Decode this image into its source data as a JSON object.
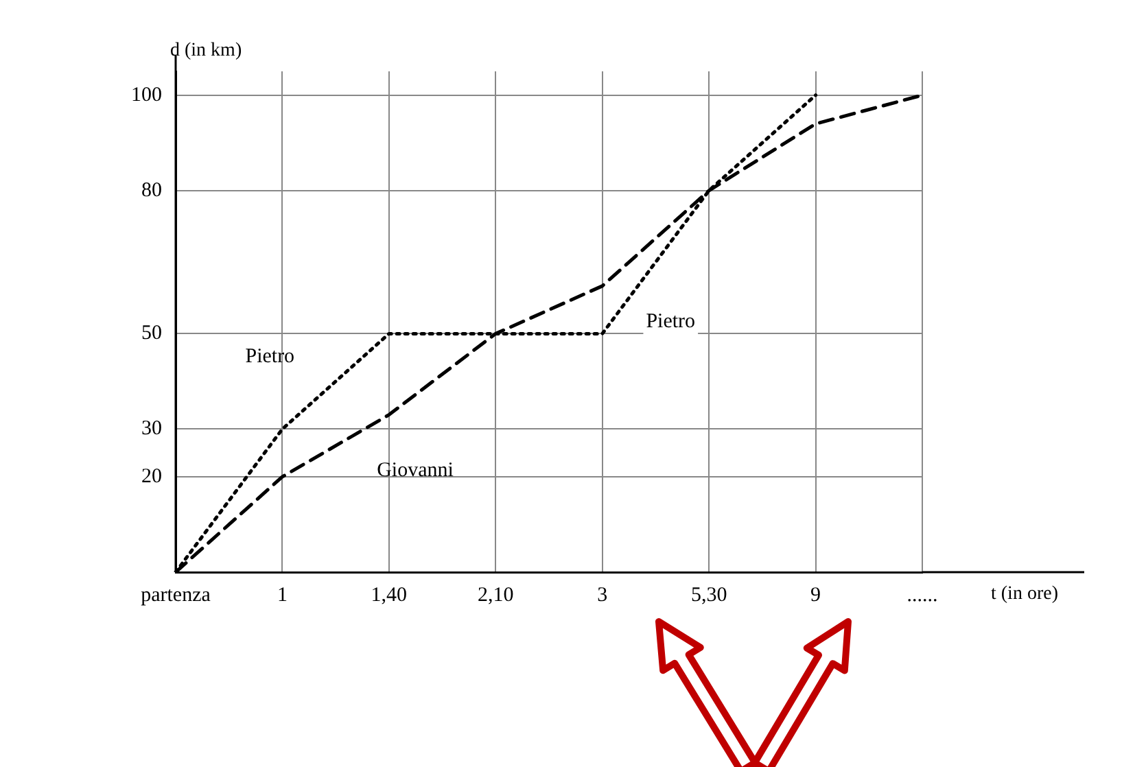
{
  "chart_data": {
    "type": "line",
    "xlabel": "t (in ore)",
    "ylabel": "d (in km)",
    "categories": [
      "partenza",
      "1",
      "1,40",
      "2,10",
      "3",
      "5,30",
      "9",
      "......"
    ],
    "series": [
      {
        "name": "Pietro",
        "color": "#000000",
        "line_style": "dotted",
        "values": [
          0,
          30,
          50,
          50,
          50,
          80,
          100,
          null
        ]
      },
      {
        "name": "Giovanni",
        "color": "#000000",
        "line_style": "dashed",
        "values": [
          0,
          20,
          33,
          50,
          60,
          80,
          94,
          100
        ]
      }
    ],
    "annotations": [
      "Pietro"
    ],
    "ylim": [
      0,
      105
    ],
    "yticks": [
      20,
      30,
      50,
      80,
      100
    ],
    "grid": true,
    "legend": false,
    "marker": "none"
  }
}
